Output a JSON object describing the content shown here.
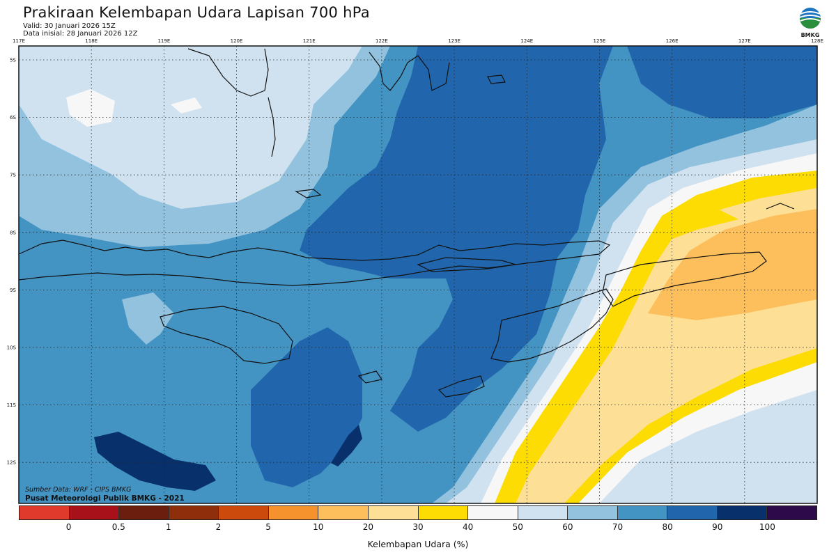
{
  "header": {
    "title": "Prakiraan Kelembapan Udara Lapisan 700 hPa",
    "valid": "Valid: 30 Januari 2026 15Z",
    "data_initial": "Data inisial: 28 Januari 2026 12Z",
    "logo_text": "BMKG"
  },
  "map": {
    "lon_labels": [
      "117E",
      "118E",
      "119E",
      "120E",
      "121E",
      "122E",
      "123E",
      "124E",
      "125E",
      "126E",
      "127E",
      "128E"
    ],
    "lat_labels": [
      "5S",
      "6S",
      "7S",
      "8S",
      "9S",
      "10S",
      "11S",
      "12S"
    ]
  },
  "credits": {
    "source": "Sumber Data: WRF - CIPS BMKG",
    "center": "Pusat Meteorologi Publik BMKG - 2021"
  },
  "legend": {
    "label": "Kelembapan Udara (%)",
    "ticks": [
      "0",
      "0.5",
      "1",
      "2",
      "5",
      "10",
      "20",
      "30",
      "40",
      "50",
      "60",
      "70",
      "80",
      "90",
      "100"
    ],
    "colors": [
      "#e03a2c",
      "#a8111a",
      "#6b1e0d",
      "#8e2e0b",
      "#cc4a0c",
      "#f5922d",
      "#fdbf5c",
      "#fedf96",
      "#fcdc03",
      "#f7f7f7",
      "#d0e2ef",
      "#93c2de",
      "#4393c3",
      "#2166ac",
      "#08306b",
      "#2d0a4a"
    ]
  },
  "colors": {
    "c20": "#fdbf5c",
    "c30": "#fedf96",
    "c40": "#fcdc03",
    "c50": "#f7f7f7",
    "c60": "#d0e2ef",
    "c70": "#93c2de",
    "c80": "#4393c3",
    "c90": "#2166ac",
    "c100": "#08306b"
  }
}
